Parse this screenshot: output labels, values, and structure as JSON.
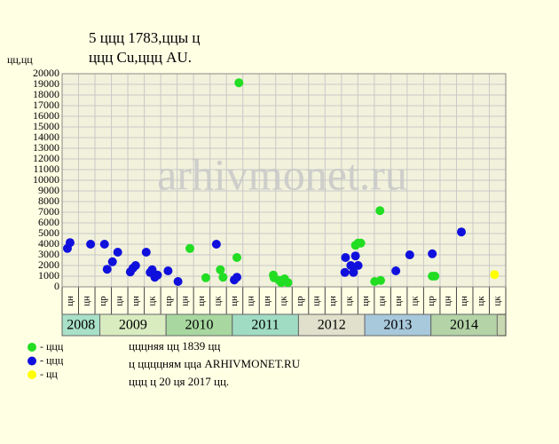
{
  "chart_data": {
    "type": "scatter",
    "title": "5 ццц 1783,ццы ц",
    "subtitle": "ццц Cu,ццц AU.",
    "y_label": "цц,цц",
    "watermark": "arhivmonet.ru",
    "xlim": [
      2008.43,
      2015.13
    ],
    "ylim": [
      0,
      20000
    ],
    "yticks": [
      0,
      1000,
      2000,
      3000,
      4000,
      5000,
      6000,
      7000,
      8000,
      9000,
      10000,
      11000,
      12000,
      13000,
      14000,
      15000,
      16000,
      17000,
      18000,
      19000,
      20000
    ],
    "grid": true,
    "quarter_labels": [
      "цн",
      "цн",
      "цр",
      "цн",
      "цн",
      "цк",
      "цр",
      "цн",
      "цн",
      "цк",
      "цн",
      "цн",
      "цн",
      "цк",
      "цр",
      "цн",
      "цн",
      "цк",
      "цн",
      "цн",
      "цн",
      "цк",
      "цр",
      "цн",
      "цн",
      "цк",
      "цк"
    ],
    "years": [
      {
        "label": "2008",
        "start": 2008,
        "color": "#a8e0c8"
      },
      {
        "label": "2009",
        "start": 2009,
        "color": "#d8ecc0"
      },
      {
        "label": "2010",
        "start": 2010,
        "color": "#a8d8a0"
      },
      {
        "label": "2011",
        "start": 2011,
        "color": "#a0dcc4"
      },
      {
        "label": "2012",
        "start": 2012,
        "color": "#e0e0cc"
      },
      {
        "label": "2013",
        "start": 2013,
        "color": "#a8c8dc"
      },
      {
        "label": "2014",
        "start": 2014,
        "color": "#b4d4a8"
      }
    ],
    "series": [
      {
        "name": "ццц",
        "color": "#22dd22",
        "x": [
          2011.1,
          2010.36,
          2010.6,
          2010.82,
          2010.86,
          2011.07,
          2011.62,
          2011.63,
          2011.71,
          2011.74,
          2011.79,
          2011.84,
          2012.86,
          2012.9,
          2012.94,
          2013.15,
          2013.24,
          2013.23,
          2014.02,
          2014.06
        ],
        "values": [
          19150,
          3600,
          850,
          1600,
          900,
          2750,
          1100,
          850,
          600,
          400,
          750,
          400,
          3900,
          4100,
          4100,
          500,
          600,
          7150,
          1000,
          1000
        ]
      },
      {
        "name": "ццц",
        "color": "#1010dd",
        "x": [
          2008.51,
          2008.55,
          2008.86,
          2009.07,
          2009.11,
          2009.19,
          2009.27,
          2009.46,
          2009.5,
          2009.54,
          2009.7,
          2009.76,
          2009.79,
          2009.83,
          2009.87,
          2010.03,
          2010.18,
          2010.76,
          2011.03,
          2011.07,
          2012.7,
          2012.71,
          2012.79,
          2012.83,
          2012.86,
          2012.9,
          2013.47,
          2013.68,
          2014.02,
          2014.46
        ],
        "values": [
          3600,
          4150,
          4000,
          4000,
          1650,
          2350,
          3250,
          1400,
          1750,
          2000,
          3250,
          1350,
          1600,
          900,
          1100,
          1500,
          500,
          4000,
          650,
          900,
          1350,
          2750,
          2000,
          1350,
          2900,
          2000,
          1500,
          3000,
          3100,
          5150
        ]
      },
      {
        "name": "цц",
        "color": "#ffff00",
        "x": [
          2014.96
        ],
        "values": [
          1150
        ]
      }
    ],
    "notes": [
      "цццняя цц 1839 цц",
      "ц ццццням цца ARHIVMONET.RU",
      "ццц ц 20 ця 2017 цц."
    ]
  }
}
